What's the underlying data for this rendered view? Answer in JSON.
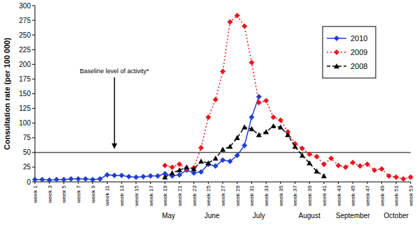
{
  "chart_data": {
    "type": "line",
    "y_label": "Consultation rate (per 100 000)",
    "x": [
      1,
      2,
      3,
      4,
      5,
      6,
      7,
      8,
      9,
      10,
      11,
      12,
      13,
      14,
      15,
      16,
      17,
      18,
      19,
      20,
      21,
      22,
      23,
      24,
      25,
      26,
      27,
      28,
      29,
      30,
      31,
      32,
      33,
      34,
      35,
      36,
      37,
      38,
      39,
      40,
      41,
      42,
      43,
      44,
      45,
      46,
      47,
      48,
      49,
      50,
      51,
      52,
      53
    ],
    "xlim": [
      1,
      53
    ],
    "xticks": [
      {
        "value": 1,
        "label": "week 1"
      },
      {
        "value": 3,
        "label": "week 3"
      },
      {
        "value": 5,
        "label": "week 5"
      },
      {
        "value": 7,
        "label": "week 7"
      },
      {
        "value": 9,
        "label": "week 9"
      },
      {
        "value": 11,
        "label": "week 11"
      },
      {
        "value": 13,
        "label": "week 13"
      },
      {
        "value": 15,
        "label": "week 15"
      },
      {
        "value": 17,
        "label": "week 17"
      },
      {
        "value": 19,
        "label": "week 19"
      },
      {
        "value": 21,
        "label": "week 21"
      },
      {
        "value": 23,
        "label": "week 23"
      },
      {
        "value": 25,
        "label": "week 25"
      },
      {
        "value": 27,
        "label": "week 27"
      },
      {
        "value": 29,
        "label": "week 29"
      },
      {
        "value": 31,
        "label": "week 31"
      },
      {
        "value": 33,
        "label": "week 33"
      },
      {
        "value": 35,
        "label": "week 35"
      },
      {
        "value": 37,
        "label": "week 37"
      },
      {
        "value": 39,
        "label": "week 39"
      },
      {
        "value": 41,
        "label": "week 41"
      },
      {
        "value": 43,
        "label": "week 43"
      },
      {
        "value": 45,
        "label": "week 45"
      },
      {
        "value": 47,
        "label": "week 47"
      },
      {
        "value": 49,
        "label": "week 49"
      },
      {
        "value": 51,
        "label": "week 51"
      },
      {
        "value": 53,
        "label": "week 53"
      }
    ],
    "ylim": [
      0,
      300
    ],
    "yticks": [
      0,
      25,
      50,
      75,
      100,
      125,
      150,
      175,
      200,
      225,
      250,
      275,
      300
    ],
    "grid": false,
    "legend": "top-right",
    "reference_lines": [
      {
        "value": 50
      }
    ],
    "annotations": [
      {
        "text": "Baseline level of activity*",
        "x": 12,
        "y": 185
      },
      {
        "text": "May",
        "x": 19.5
      },
      {
        "text": "June",
        "x": 25.5
      },
      {
        "text": "July",
        "x": 32
      },
      {
        "text": "August",
        "x": 39
      },
      {
        "text": "September",
        "x": 45
      },
      {
        "text": "October",
        "x": 51
      }
    ],
    "series": [
      {
        "name": "2010",
        "color": "#1f3fd6",
        "marker": "diamond",
        "line_style": "solid",
        "values": [
          4,
          4,
          3,
          4,
          4,
          5,
          5,
          5,
          4,
          5,
          12,
          11,
          11,
          9,
          8,
          9,
          10,
          10,
          14,
          10,
          12,
          20,
          15,
          17,
          30,
          27,
          37,
          35,
          45,
          62,
          110,
          145,
          null,
          null,
          null,
          null,
          null,
          null,
          null,
          null,
          null,
          null,
          null,
          null,
          null,
          null,
          null,
          null,
          null,
          null,
          null,
          null,
          null
        ]
      },
      {
        "name": "2009",
        "color": "#e8161b",
        "marker": "diamond",
        "line_style": "dotted",
        "values": [
          null,
          null,
          null,
          null,
          null,
          null,
          null,
          null,
          null,
          null,
          null,
          null,
          null,
          null,
          null,
          null,
          null,
          null,
          28,
          25,
          30,
          22,
          24,
          58,
          110,
          140,
          188,
          272,
          283,
          265,
          203,
          135,
          138,
          110,
          105,
          85,
          65,
          57,
          47,
          43,
          30,
          40,
          28,
          25,
          33,
          27,
          30,
          20,
          22,
          10,
          8,
          5,
          8
        ]
      },
      {
        "name": "2008",
        "color": "#000000",
        "marker": "triangle",
        "line_style": "dashed",
        "values": [
          null,
          null,
          null,
          null,
          null,
          null,
          null,
          null,
          null,
          null,
          null,
          null,
          null,
          null,
          null,
          null,
          null,
          null,
          8,
          15,
          20,
          25,
          22,
          35,
          32,
          40,
          55,
          60,
          75,
          93,
          90,
          80,
          85,
          95,
          93,
          80,
          60,
          45,
          32,
          18,
          10,
          null,
          null,
          null,
          null,
          null,
          null,
          null,
          null,
          null,
          null,
          null,
          null
        ]
      }
    ]
  }
}
